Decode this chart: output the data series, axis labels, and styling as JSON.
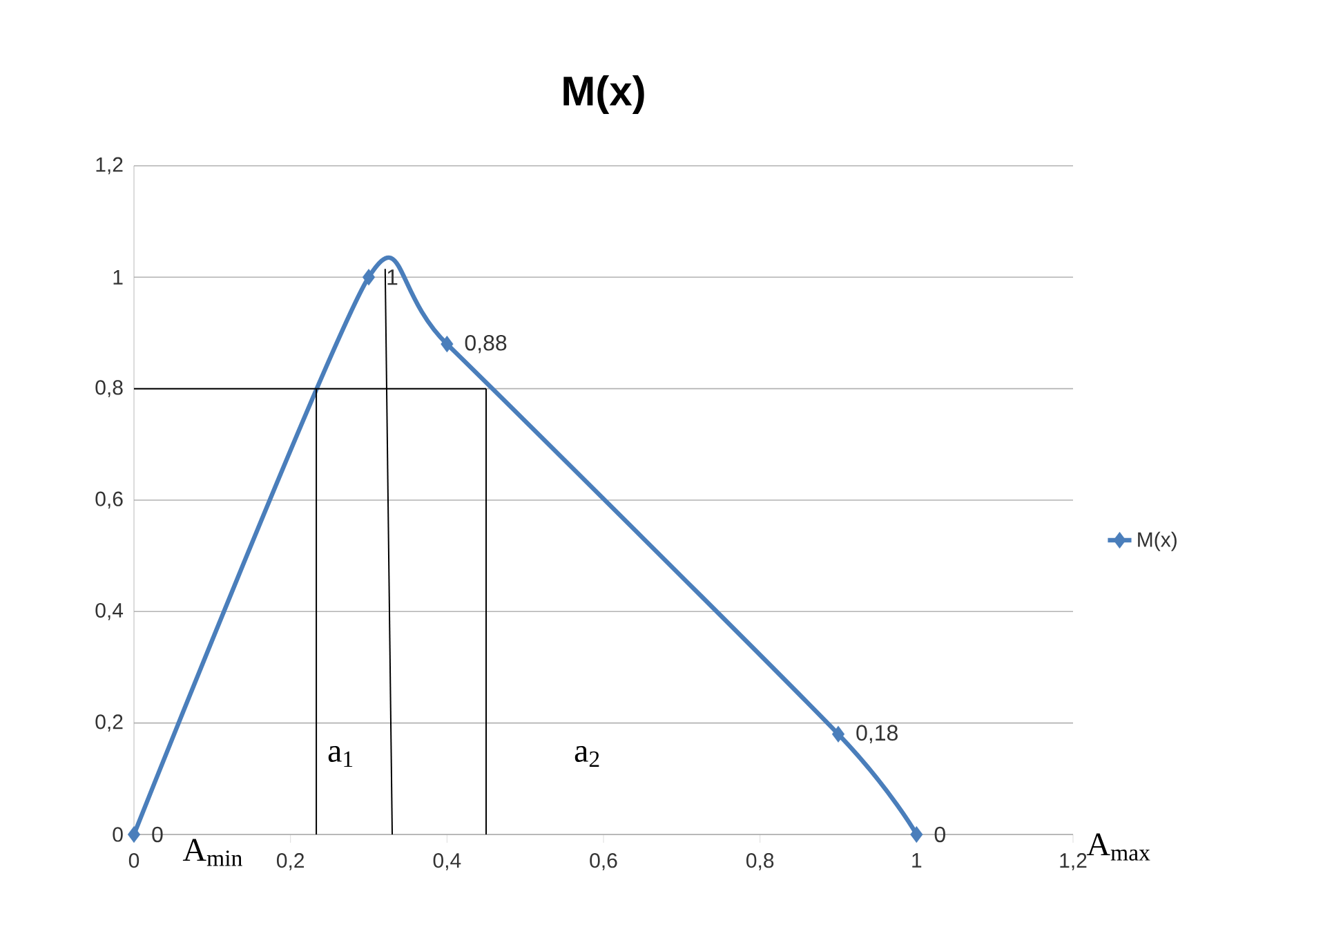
{
  "chart_data": {
    "type": "line",
    "title": "M(x)",
    "series": [
      {
        "name": "M(x)",
        "color": "#4a7ebb",
        "marker": "diamond",
        "x": [
          0,
          0.3,
          0.4,
          0.9,
          1
        ],
        "values": [
          0,
          1,
          0.88,
          0.18,
          0
        ],
        "value_labels": [
          "0",
          "1",
          "0,88",
          "0,18",
          "0"
        ]
      },
      {
        "color": "#000000",
        "marker": "none",
        "x": [
          0,
          0.45
        ],
        "values": [
          0.8,
          0.8
        ]
      },
      {
        "color": "#000000",
        "marker": "none",
        "x": [
          0.233,
          0.233
        ],
        "values": [
          0,
          0.8
        ]
      },
      {
        "color": "#000000",
        "marker": "none",
        "x": [
          0.33,
          0.321
        ],
        "values": [
          0,
          1.015
        ]
      },
      {
        "color": "#000000",
        "marker": "none",
        "x": [
          0.45,
          0.45
        ],
        "values": [
          0,
          0.8
        ]
      }
    ],
    "xlim": [
      0,
      1.2
    ],
    "ylim": [
      0,
      1.2
    ],
    "xticks": [
      0,
      {
        "value": 0.2,
        "label": "0,2"
      },
      {
        "value": 0.4,
        "label": "0,4"
      },
      {
        "value": 0.6,
        "label": "0,6"
      },
      {
        "value": 0.8,
        "label": "0,8"
      },
      1,
      {
        "value": 1.2,
        "label": "1,2"
      }
    ],
    "yticks": [
      0,
      {
        "value": 0.2,
        "label": "0,2"
      },
      {
        "value": 0.4,
        "label": "0,4"
      },
      {
        "value": 0.6,
        "label": "0,6"
      },
      {
        "value": 0.8,
        "label": "0,8"
      },
      1,
      {
        "value": 1.2,
        "label": "1,2"
      }
    ],
    "grid": "y",
    "legend": "right",
    "annotations": [
      "A$_{min}$",
      "a$_{1}$",
      "a$_{2}$",
      "A$_{max}$"
    ]
  }
}
